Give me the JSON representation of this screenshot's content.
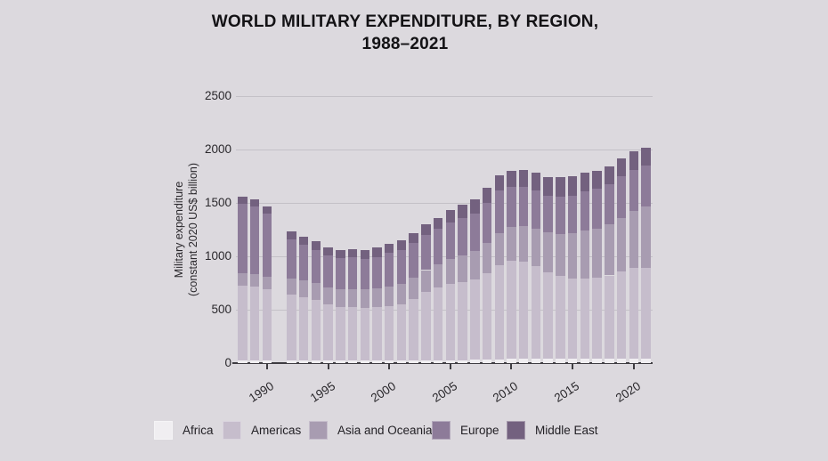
{
  "title": {
    "line1": "WORLD MILITARY EXPENDITURE, BY REGION,",
    "line2": "1988–2021"
  },
  "y_axis": {
    "label_line1": "Military expenditure",
    "label_line2": "(constant 2020 US$ billion)",
    "tick_values": [
      0,
      500,
      1000,
      1500,
      2000,
      2500
    ]
  },
  "x_axis": {
    "tick_years": [
      1990,
      1995,
      2000,
      2005,
      2010,
      2015,
      2020
    ]
  },
  "legend": [
    {
      "label": "Africa",
      "color": "#f0eef1"
    },
    {
      "label": "Americas",
      "color": "#c6bdcc"
    },
    {
      "label": "Asia and Oceania",
      "color": "#a89cb1"
    },
    {
      "label": "Europe",
      "color": "#8d7b99"
    },
    {
      "label": "Middle East",
      "color": "#73617f"
    }
  ],
  "colors": {
    "background": "#dcd9de",
    "gridline": "#c4c1c7",
    "axis": "#3e3c41",
    "title_text": "#131215"
  },
  "chart_data": {
    "type": "bar",
    "stacked": true,
    "title": "WORLD MILITARY EXPENDITURE, BY REGION, 1988–2021",
    "ylabel": "Military expenditure (constant 2020 US$ billion)",
    "ylim": [
      0,
      2500
    ],
    "grid": true,
    "legend_position": "bottom",
    "missing_years": [
      1991
    ],
    "x": [
      1988,
      1989,
      1990,
      1992,
      1993,
      1994,
      1995,
      1996,
      1997,
      1998,
      1999,
      2000,
      2001,
      2002,
      2003,
      2004,
      2005,
      2006,
      2007,
      2008,
      2009,
      2010,
      2011,
      2012,
      2013,
      2014,
      2015,
      2016,
      2017,
      2018,
      2019,
      2020,
      2021
    ],
    "series": [
      {
        "name": "Africa",
        "color": "#f0eef1",
        "values": [
          25,
          25,
          26,
          27,
          26,
          25,
          23,
          22,
          22,
          21,
          21,
          22,
          23,
          25,
          26,
          27,
          28,
          29,
          30,
          33,
          36,
          38,
          39,
          40,
          39,
          41,
          40,
          39,
          40,
          41,
          42,
          43,
          40
        ]
      },
      {
        "name": "Americas",
        "color": "#c6bdcc",
        "values": [
          700,
          688,
          662,
          618,
          592,
          568,
          525,
          505,
          503,
          498,
          502,
          512,
          527,
          577,
          638,
          684,
          715,
          733,
          755,
          810,
          880,
          920,
          910,
          870,
          810,
          775,
          755,
          755,
          760,
          780,
          815,
          845,
          850
        ]
      },
      {
        "name": "Asia and Oceania",
        "color": "#a89cb1",
        "values": [
          118,
          120,
          123,
          150,
          154,
          157,
          160,
          163,
          166,
          169,
          174,
          180,
          190,
          199,
          207,
          214,
          235,
          248,
          262,
          280,
          300,
          320,
          335,
          350,
          375,
          395,
          420,
          445,
          460,
          480,
          505,
          540,
          575
        ]
      },
      {
        "name": "Europe",
        "color": "#8d7b99",
        "values": [
          648,
          633,
          590,
          360,
          335,
          312,
          300,
          292,
          297,
          290,
          297,
          316,
          317,
          322,
          328,
          330,
          338,
          347,
          353,
          380,
          399,
          372,
          366,
          360,
          346,
          344,
          350,
          371,
          375,
          371,
          386,
          380,
          385
        ]
      },
      {
        "name": "Middle East",
        "color": "#73617f",
        "values": [
          69,
          67,
          69,
          75,
          78,
          78,
          77,
          78,
          82,
          82,
          86,
          90,
          93,
          97,
          101,
          105,
          114,
          123,
          130,
          137,
          145,
          150,
          155,
          165,
          175,
          185,
          185,
          170,
          165,
          168,
          172,
          172,
          165
        ]
      }
    ]
  }
}
